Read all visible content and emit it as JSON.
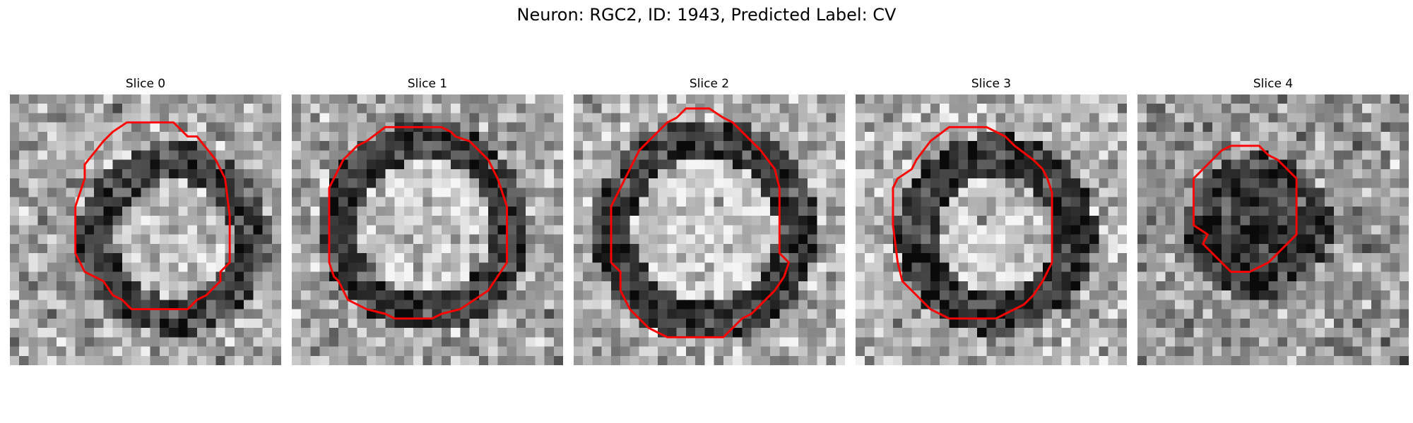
{
  "figure": {
    "title": "Neuron: RGC2, ID: 1943, Predicted Label: CV"
  },
  "panels": [
    {
      "title": "Slice 0",
      "seed": 11,
      "ring": {
        "cx": 17.5,
        "cy": 15.5,
        "r": 8.2,
        "width": 2.0,
        "dark": 60,
        "inner": 190,
        "outer": 165
      },
      "contour": [
        [
          12.5,
          3
        ],
        [
          17.5,
          3
        ],
        [
          19,
          4.5
        ],
        [
          20,
          4.5
        ],
        [
          22,
          7
        ],
        [
          23,
          9
        ],
        [
          23.5,
          13
        ],
        [
          23.5,
          18
        ],
        [
          22.5,
          19
        ],
        [
          22.5,
          20
        ],
        [
          21,
          21.5
        ],
        [
          20,
          22
        ],
        [
          19,
          23
        ],
        [
          13,
          23
        ],
        [
          12,
          22
        ],
        [
          11,
          21.5
        ],
        [
          10,
          20
        ],
        [
          8,
          19
        ],
        [
          7.5,
          18
        ],
        [
          7,
          17
        ],
        [
          7,
          12
        ],
        [
          8,
          9
        ],
        [
          8,
          7.5
        ],
        [
          10,
          5
        ],
        [
          11,
          4
        ]
      ]
    },
    {
      "title": "Slice 1",
      "seed": 23,
      "ring": {
        "cx": 14.3,
        "cy": 14.2,
        "r": 9.2,
        "width": 2.0,
        "dark": 55,
        "inner": 200,
        "outer": 165
      },
      "contour": [
        [
          10,
          3.5
        ],
        [
          16,
          3.5
        ],
        [
          17,
          4
        ],
        [
          17.5,
          4.5
        ],
        [
          19,
          5
        ],
        [
          20,
          6
        ],
        [
          21,
          7
        ],
        [
          22,
          9
        ],
        [
          23,
          12
        ],
        [
          23,
          18
        ],
        [
          22,
          19.5
        ],
        [
          21,
          21
        ],
        [
          19.5,
          22
        ],
        [
          18,
          23
        ],
        [
          16,
          23.5
        ],
        [
          15,
          24
        ],
        [
          11,
          24
        ],
        [
          10,
          23.5
        ],
        [
          8,
          23
        ],
        [
          6,
          22
        ],
        [
          5,
          20
        ],
        [
          4.5,
          19.5
        ],
        [
          4,
          18
        ],
        [
          4,
          10
        ],
        [
          5,
          8
        ],
        [
          5.5,
          7
        ],
        [
          7,
          5.5
        ],
        [
          8,
          5
        ]
      ]
    },
    {
      "title": "Slice 2",
      "seed": 37,
      "ring": {
        "cx": 14.0,
        "cy": 14.5,
        "r": 9.8,
        "width": 2.2,
        "dark": 60,
        "inner": 205,
        "outer": 175
      },
      "contour": [
        [
          12,
          1.5
        ],
        [
          14.5,
          1.5
        ],
        [
          16,
          2.5
        ],
        [
          17,
          3
        ],
        [
          18,
          4
        ],
        [
          19,
          5
        ],
        [
          20,
          6
        ],
        [
          21.5,
          8
        ],
        [
          22,
          10
        ],
        [
          22,
          17
        ],
        [
          23,
          18
        ],
        [
          22.5,
          19.5
        ],
        [
          21.5,
          21
        ],
        [
          20,
          22.5
        ],
        [
          19,
          23.5
        ],
        [
          18,
          24
        ],
        [
          17,
          25
        ],
        [
          16,
          26
        ],
        [
          10,
          26
        ],
        [
          9,
          25.5
        ],
        [
          8,
          25
        ],
        [
          7,
          24
        ],
        [
          6,
          23
        ],
        [
          5,
          21
        ],
        [
          5,
          19
        ],
        [
          4,
          18
        ],
        [
          4,
          12
        ],
        [
          5,
          10
        ],
        [
          5.5,
          9
        ],
        [
          6,
          8
        ],
        [
          7,
          6
        ],
        [
          8,
          5
        ],
        [
          9,
          4
        ],
        [
          10,
          3
        ],
        [
          11,
          2.5
        ]
      ]
    },
    {
      "title": "Slice 3",
      "seed": 53,
      "ring": {
        "cx": 15.0,
        "cy": 15.0,
        "r": 8.5,
        "width": 2.2,
        "dark": 50,
        "inner": 195,
        "outer": 180
      },
      "contour": [
        [
          10,
          3.5
        ],
        [
          14,
          3.5
        ],
        [
          16,
          4.5
        ],
        [
          17,
          5.5
        ],
        [
          19,
          7
        ],
        [
          20,
          8
        ],
        [
          20.5,
          9
        ],
        [
          21,
          10.5
        ],
        [
          21,
          16
        ],
        [
          21,
          18
        ],
        [
          20,
          20
        ],
        [
          19,
          21.5
        ],
        [
          18,
          22.5
        ],
        [
          17,
          23
        ],
        [
          16,
          23.5
        ],
        [
          15,
          24
        ],
        [
          10,
          24
        ],
        [
          9,
          23.5
        ],
        [
          8,
          23
        ],
        [
          7,
          22
        ],
        [
          6,
          21
        ],
        [
          5,
          20
        ],
        [
          4.5,
          18
        ],
        [
          4,
          14
        ],
        [
          4,
          10
        ],
        [
          4.5,
          9
        ],
        [
          6,
          8
        ],
        [
          6.5,
          7
        ],
        [
          8,
          5
        ]
      ]
    },
    {
      "title": "Slice 4",
      "seed": 71,
      "ring": {
        "cx": 12.9,
        "cy": 14.2,
        "r": 3.8,
        "width": 4.0,
        "dark": 55,
        "inner": 60,
        "outer": 150
      },
      "contour": [
        [
          10,
          5.5
        ],
        [
          13,
          5.5
        ],
        [
          14,
          6.5
        ],
        [
          15,
          7
        ],
        [
          16,
          8
        ],
        [
          17,
          9
        ],
        [
          17,
          15
        ],
        [
          16,
          16
        ],
        [
          15,
          17
        ],
        [
          14,
          18
        ],
        [
          13,
          18.5
        ],
        [
          12,
          19
        ],
        [
          10,
          19
        ],
        [
          9,
          18
        ],
        [
          8,
          17
        ],
        [
          7,
          16
        ],
        [
          7.5,
          15
        ],
        [
          6,
          14
        ],
        [
          6,
          9
        ],
        [
          7,
          8
        ],
        [
          8,
          7
        ],
        [
          9,
          6
        ]
      ]
    }
  ],
  "style": {
    "contour_color": "#ff0000",
    "colormap": "gray"
  }
}
